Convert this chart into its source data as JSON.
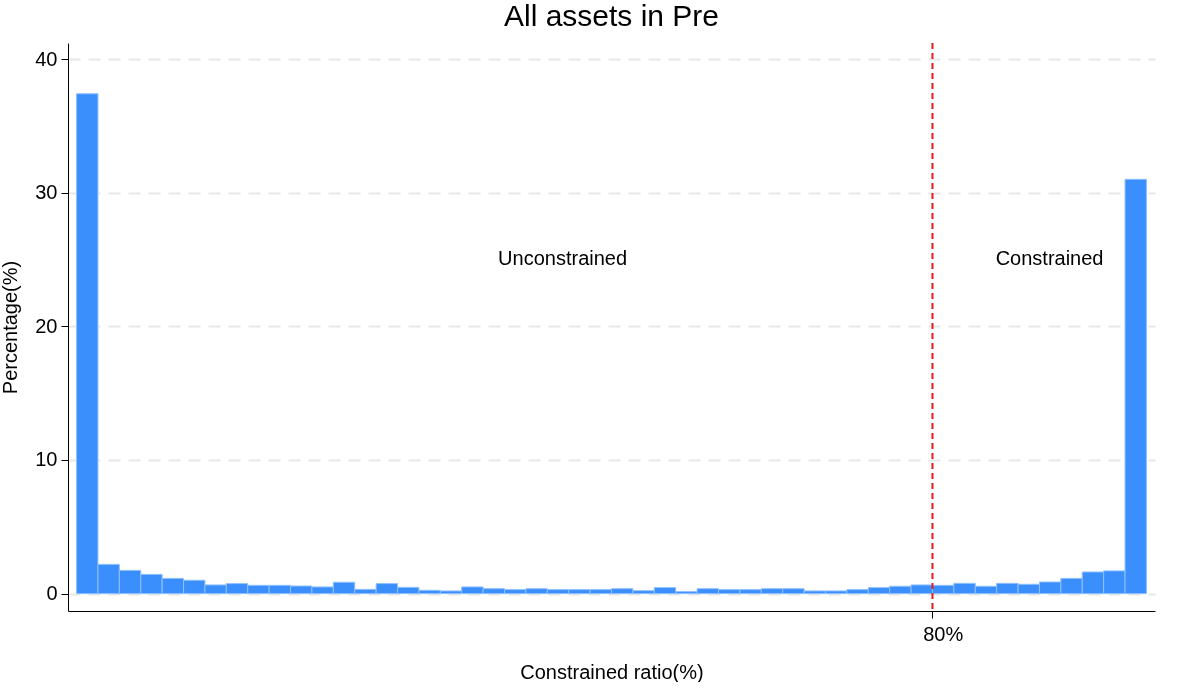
{
  "chart_data": {
    "type": "bar",
    "title": "All assets in Pre",
    "xlabel": "Constrained ratio(%)",
    "ylabel": "Percentage(%)",
    "categories": [
      null,
      null,
      null,
      null,
      null,
      null,
      null,
      null,
      null,
      null,
      null,
      null,
      null,
      null,
      null,
      null,
      null,
      null,
      null,
      null,
      null,
      null,
      null,
      null,
      null,
      null,
      null,
      null,
      null,
      null,
      null,
      null,
      null,
      null,
      null,
      null,
      null,
      null,
      null,
      null,
      "80%",
      null,
      null,
      null,
      null,
      null,
      null,
      null,
      null,
      null
    ],
    "values": [
      37.4,
      2.19,
      1.74,
      1.44,
      1.14,
      1.0,
      0.65,
      0.75,
      0.62,
      0.62,
      0.57,
      0.5,
      0.85,
      0.32,
      0.75,
      0.47,
      0.25,
      0.2,
      0.5,
      0.37,
      0.3,
      0.37,
      0.3,
      0.3,
      0.3,
      0.37,
      0.22,
      0.45,
      0.15,
      0.37,
      0.3,
      0.3,
      0.37,
      0.37,
      0.2,
      0.2,
      0.3,
      0.45,
      0.55,
      0.65,
      0.62,
      0.77,
      0.55,
      0.77,
      0.7,
      0.87,
      1.14,
      1.62,
      1.7,
      31.0
    ],
    "color": "#3a8ffc",
    "ylim": [
      -1.3,
      41.2
    ],
    "yticks": [
      0,
      10,
      20,
      30,
      40
    ],
    "grid": "y",
    "ref_lines": [
      {
        "axis": "x",
        "value": "80%",
        "label": null,
        "color": "#e8191c",
        "line_style": "dashed"
      }
    ],
    "annotations": [
      "Unconstrained",
      "Constrained"
    ]
  }
}
